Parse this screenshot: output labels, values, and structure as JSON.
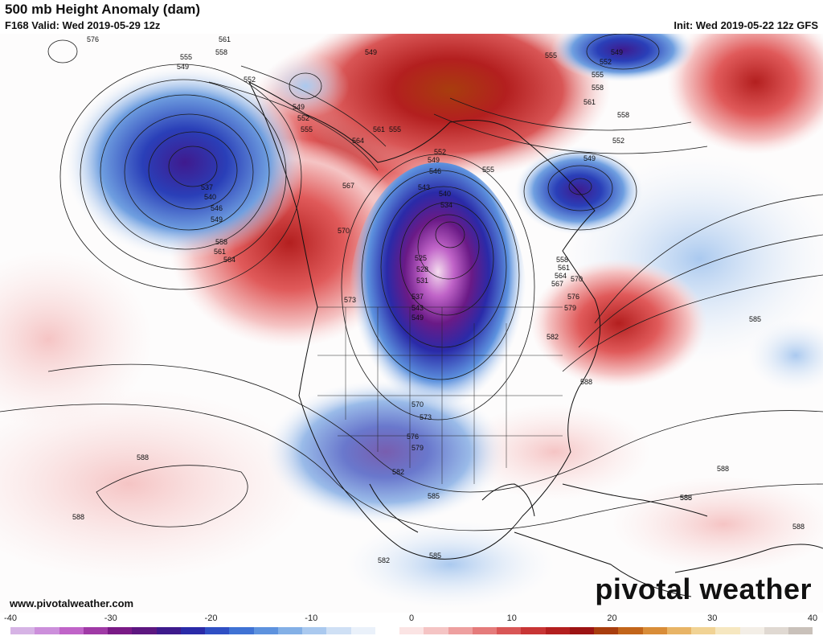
{
  "header": {
    "title": "500 mb Height Anomaly (dam)",
    "valid": "F168 Valid: Wed 2019-05-29 12z",
    "init": "Init: Wed 2019-05-22 12z GFS"
  },
  "footer": {
    "website": "www.pivotalweather.com",
    "brand": "pivotal weather"
  },
  "colorbar": {
    "ticks": [
      "-40",
      "-30",
      "-20",
      "-10",
      "0",
      "10",
      "20",
      "30",
      "40"
    ],
    "colors": [
      "#d6b3e5",
      "#cc8fdb",
      "#c064c8",
      "#a03aa6",
      "#7a1a86",
      "#5d1780",
      "#3e1a8c",
      "#2a2aa8",
      "#2f4fc4",
      "#3f72d4",
      "#5d92de",
      "#83b0e6",
      "#aac9ef",
      "#cfe0f5",
      "#eaf1fa",
      "#ffffff",
      "#fbe4e4",
      "#f5c4c4",
      "#eea0a0",
      "#e57b7b",
      "#d95656",
      "#c83535",
      "#b31f1f",
      "#9c1414",
      "#a83d0e",
      "#c2651a",
      "#d98d38",
      "#e8b466",
      "#f1d394",
      "#f6e7c0",
      "#f3eee6",
      "#e0d9d2",
      "#c9c1ba"
    ]
  },
  "map": {
    "contour_labels": [
      "576",
      "561",
      "558",
      "555",
      "549",
      "552",
      "549",
      "552",
      "555",
      "537",
      "540",
      "546",
      "549",
      "558",
      "561",
      "564",
      "549",
      "555",
      "549",
      "552",
      "555",
      "558",
      "561",
      "558",
      "552",
      "549",
      "564",
      "561",
      "555",
      "552",
      "549",
      "546",
      "543",
      "540",
      "534",
      "567",
      "570",
      "573",
      "525",
      "528",
      "531",
      "537",
      "543",
      "549",
      "555",
      "558",
      "561",
      "564",
      "567",
      "570",
      "576",
      "579",
      "582",
      "585",
      "588",
      "570",
      "573",
      "576",
      "579",
      "582",
      "585",
      "588",
      "588",
      "582",
      "585",
      "588",
      "588",
      "588",
      "585"
    ]
  }
}
